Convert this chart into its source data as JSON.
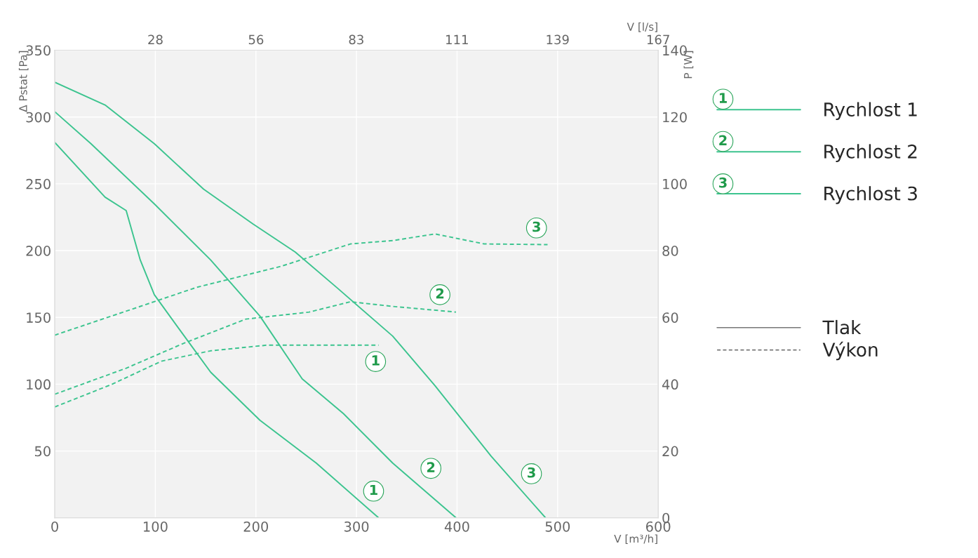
{
  "chart_data": {
    "type": "line",
    "xlabel": "V [m³/h]",
    "ylabel": "Δ Pstat [Pa]",
    "y2label": "P [W]",
    "x2label": "V [l/s]",
    "xlim": [
      0,
      600
    ],
    "xticks": [
      0,
      100,
      200,
      300,
      400,
      500,
      600
    ],
    "ylim": [
      0,
      350
    ],
    "yticks": [
      50,
      100,
      150,
      200,
      250,
      300,
      350
    ],
    "y2lim": [
      0,
      140
    ],
    "y2ticks": [
      0,
      20,
      40,
      60,
      80,
      100,
      120,
      140
    ],
    "x2lim": [
      0,
      166.7
    ],
    "x2ticks": [
      {
        "value": 27.8,
        "label": "28"
      },
      {
        "value": 55.6,
        "label": "56"
      },
      {
        "value": 83.3,
        "label": "83"
      },
      {
        "value": 111.1,
        "label": "111"
      },
      {
        "value": 138.9,
        "label": "139"
      },
      {
        "value": 166.7,
        "label": "167"
      }
    ],
    "grid": true,
    "legend": "right",
    "series": [
      {
        "name": "Rychlost 1",
        "color": "#3cc48f",
        "line_style": "solid",
        "x": [
          0,
          50,
          71,
          85,
          99,
          124,
          155,
          204,
          260,
          322
        ],
        "values": [
          281,
          240,
          230,
          193,
          167,
          141,
          109,
          73,
          41,
          0
        ]
      },
      {
        "name": "Rychlost 2",
        "color": "#3cc48f",
        "line_style": "solid",
        "x": [
          0,
          36,
          99,
          155,
          204,
          246,
          287,
          336,
          399
        ],
        "values": [
          304,
          280,
          235,
          193,
          151,
          104,
          78,
          41,
          0
        ]
      },
      {
        "name": "Rychlost 3",
        "color": "#3cc48f",
        "line_style": "solid",
        "x": [
          0,
          50,
          99,
          148,
          197,
          239,
          281,
          336,
          378,
          434,
          488
        ],
        "values": [
          326,
          309,
          280,
          246,
          220,
          199,
          172,
          136,
          99,
          46,
          0
        ]
      },
      {
        "color": "#3cc48f",
        "line_style": "dashed",
        "axis": "y2",
        "x": [
          0,
          57,
          106,
          155,
          211,
          322
        ],
        "values": [
          33.2,
          40,
          46.9,
          50,
          51.7,
          51.7
        ]
      },
      {
        "color": "#3cc48f",
        "line_style": "dashed",
        "axis": "y2",
        "x": [
          0,
          71,
          127,
          190,
          253,
          294,
          336,
          399
        ],
        "values": [
          37,
          44.8,
          52.1,
          59.5,
          61.6,
          64.7,
          63.3,
          61.6
        ]
      },
      {
        "color": "#3cc48f",
        "line_style": "dashed",
        "axis": "y2",
        "x": [
          0,
          85,
          141,
          225,
          294,
          336,
          378,
          427,
          490
        ],
        "values": [
          54.7,
          63.3,
          69,
          75.3,
          82,
          83,
          85,
          82,
          81.8
        ]
      }
    ],
    "annotations": [
      {
        "text": "1",
        "x": 317,
        "y": 20
      },
      {
        "text": "2",
        "x": 374,
        "y": 37
      },
      {
        "text": "3",
        "x": 474,
        "y": 33
      },
      {
        "text": "1",
        "x": 319,
        "y": 117
      },
      {
        "text": "2",
        "x": 383,
        "y": 167
      },
      {
        "text": "3",
        "x": 479,
        "y": 217
      },
      "1",
      "2",
      "3",
      "Tlak",
      "Výkon"
    ]
  }
}
